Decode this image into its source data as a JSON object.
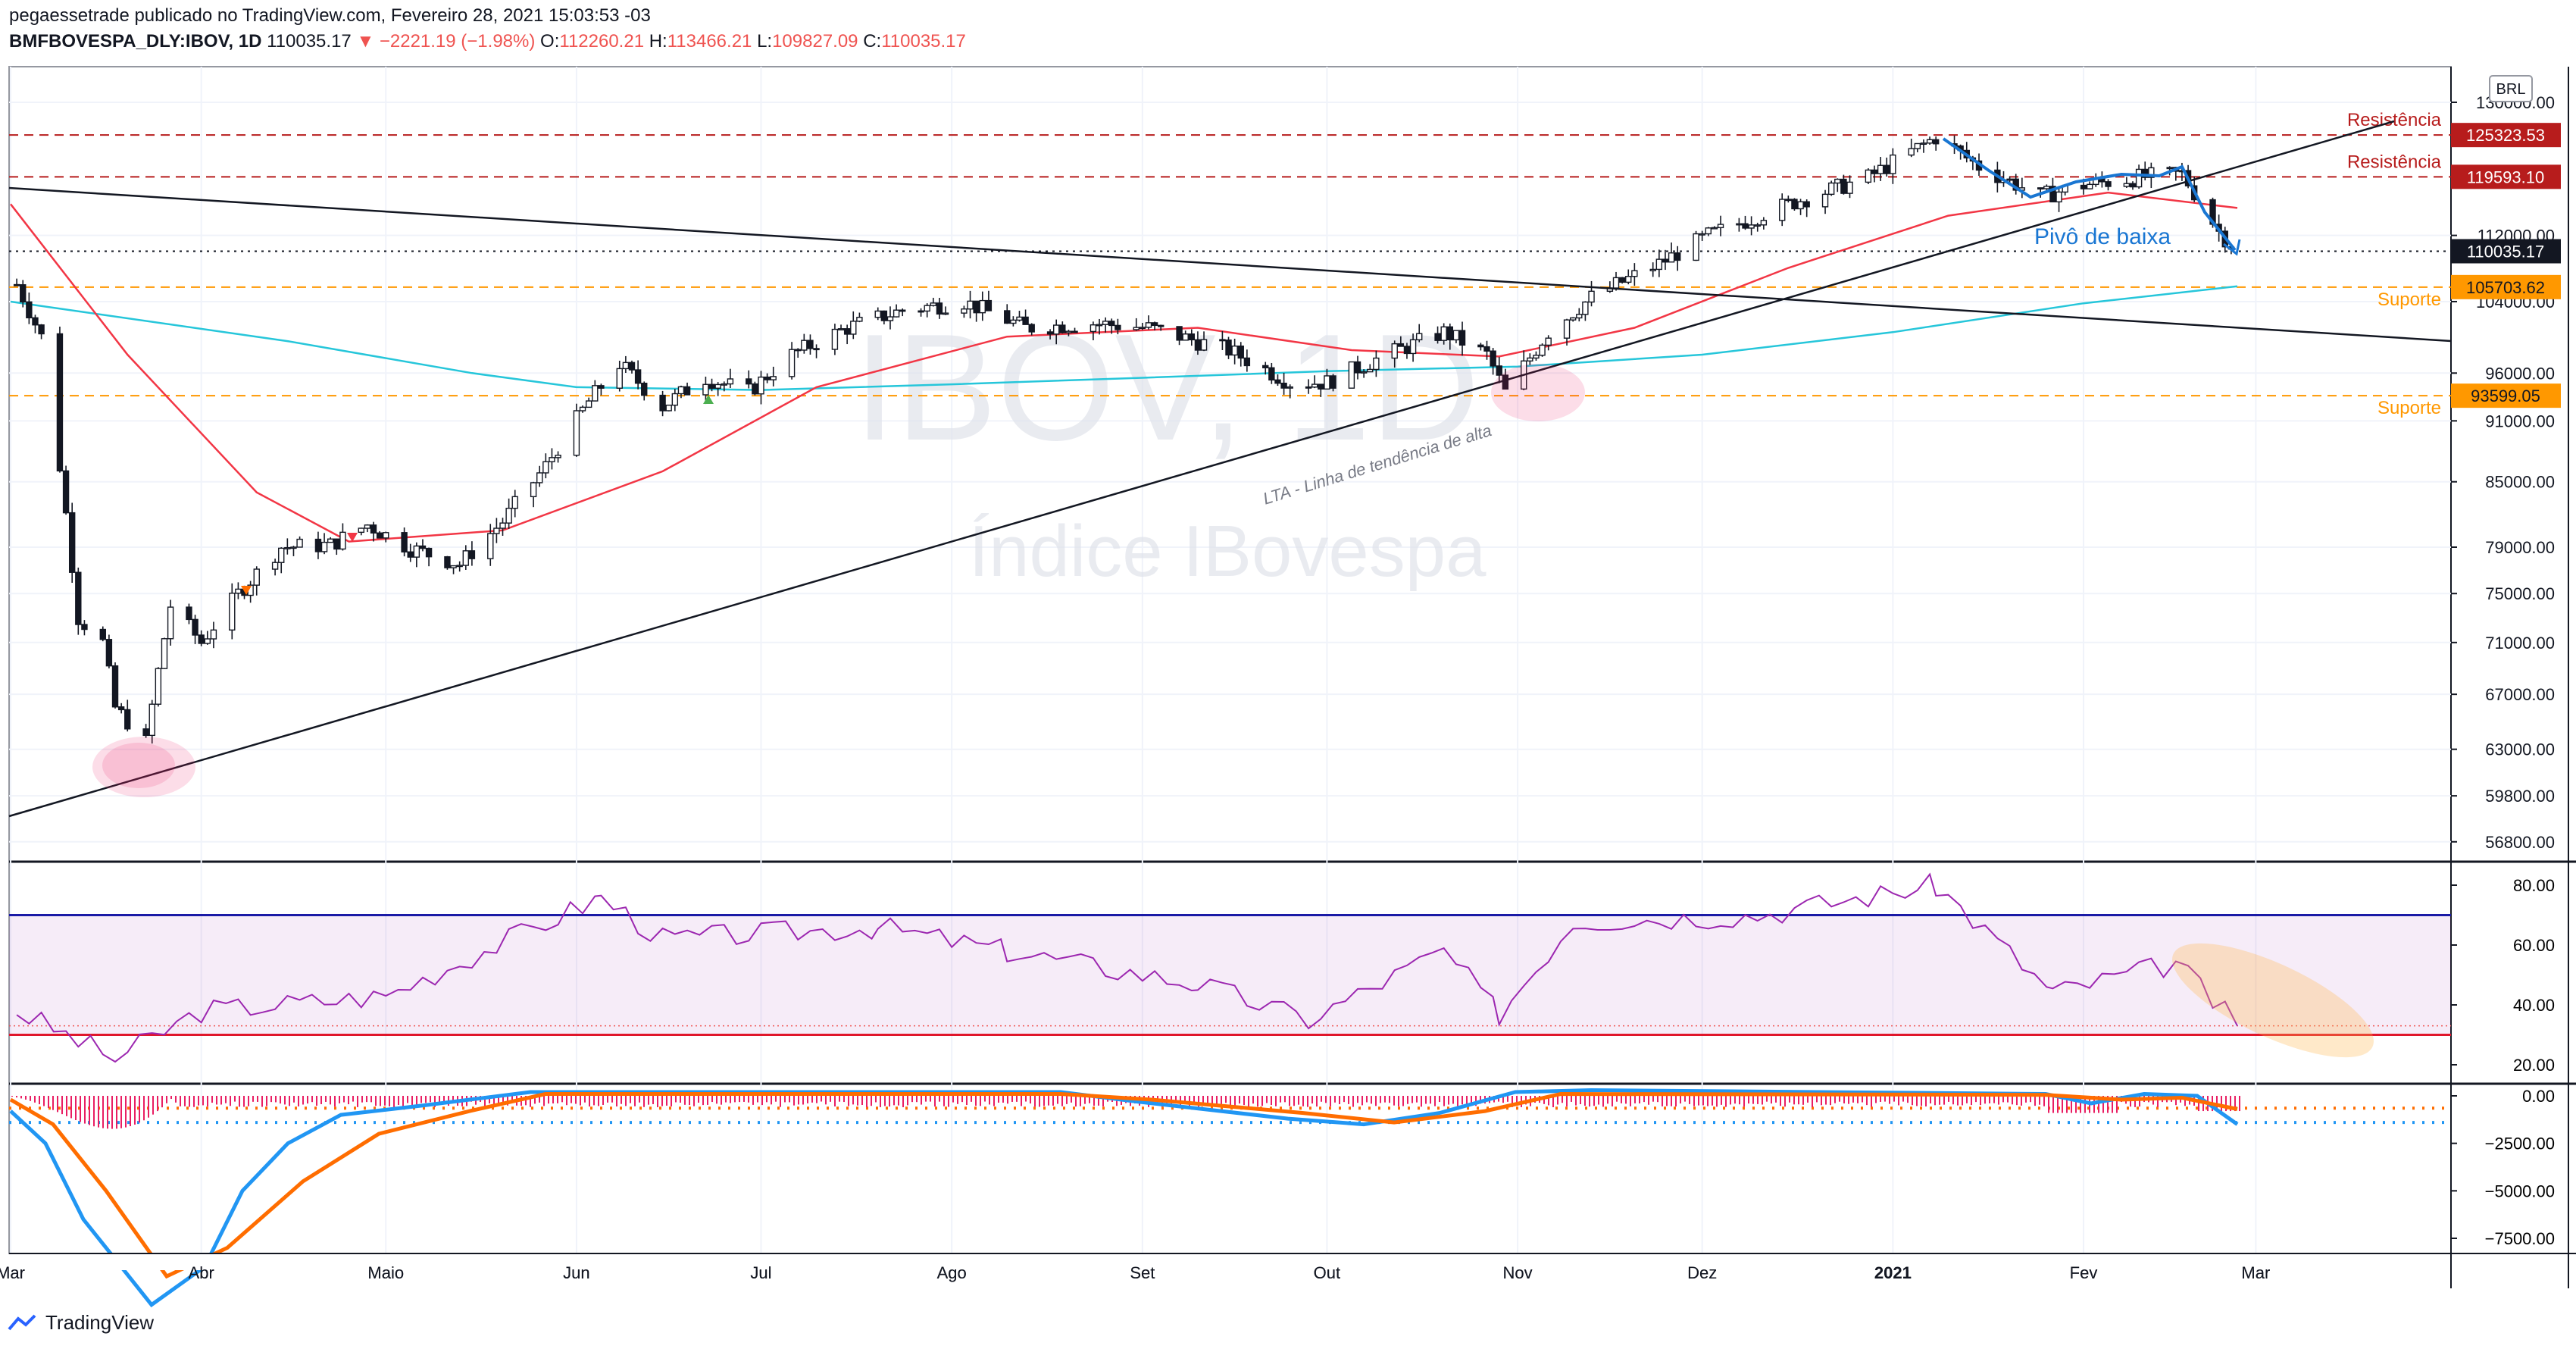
{
  "header": {
    "line1": "pegaessetrade publicado no TradingView.com, Fevereiro 28, 2021 15:03:53 -03",
    "symbol": "BMFBOVESPA_DLY:IBOV, 1D",
    "last": "110035.17",
    "change": "▼ −2221.19 (−1.98%)",
    "o_label": "O:",
    "o": "112260.21",
    "h_label": "H:",
    "h": "113466.21",
    "l_label": "L:",
    "l": "109827.09",
    "c_label": "C:",
    "c": "110035.17"
  },
  "watermark": {
    "symbol": "IBOV, 1D",
    "name": "Índice IBovespa"
  },
  "currency": "BRL",
  "footer": {
    "brand": "TradingView"
  },
  "colors": {
    "up": "#131722",
    "down": "#131722",
    "sma_short": "#f23645",
    "sma_long": "#26c6da",
    "resistance": "#b71c1c",
    "support": "#ff9800",
    "rsi": "#9c27b0",
    "macd": "#2196f3",
    "signal": "#ff6d00",
    "hist": "#e91e63",
    "pivot": "#1976d2"
  },
  "chart_data": [
    {
      "type": "line",
      "title": "BMFBOVESPA_DLY:IBOV, 1D",
      "x_ticks": [
        "Mar",
        "Abr",
        "Maio",
        "Jun",
        "Jul",
        "Ago",
        "Set",
        "Out",
        "Nov",
        "Dez",
        "2021",
        "Fev",
        "Mar"
      ],
      "y_ticks": [
        "130000.00",
        "112000.00",
        "104000.00",
        "96000.00",
        "91000.00",
        "85000.00",
        "79000.00",
        "75000.00",
        "71000.00",
        "67000.00",
        "63000.00",
        "59800.00",
        "56800.00"
      ],
      "ylim": [
        56800,
        131000
      ],
      "price_series_approx": [
        [
          "2020-03-02",
          106000
        ],
        [
          "2020-03-06",
          100000
        ],
        [
          "2020-03-12",
          73000
        ],
        [
          "2020-03-16",
          71000
        ],
        [
          "2020-03-18",
          66000
        ],
        [
          "2020-03-23",
          63500
        ],
        [
          "2020-03-27",
          74000
        ],
        [
          "2020-04-01",
          71000
        ],
        [
          "2020-04-07",
          75000
        ],
        [
          "2020-04-14",
          79000
        ],
        [
          "2020-04-22",
          79200
        ],
        [
          "2020-04-28",
          81000
        ],
        [
          "2020-05-05",
          78900
        ],
        [
          "2020-05-13",
          77500
        ],
        [
          "2020-05-20",
          81300
        ],
        [
          "2020-05-27",
          86500
        ],
        [
          "2020-06-03",
          93000
        ],
        [
          "2020-06-08",
          97000
        ],
        [
          "2020-06-15",
          92500
        ],
        [
          "2020-06-22",
          95500
        ],
        [
          "2020-06-29",
          94000
        ],
        [
          "2020-07-06",
          98000
        ],
        [
          "2020-07-15",
          101000
        ],
        [
          "2020-07-24",
          103000
        ],
        [
          "2020-08-03",
          104000
        ],
        [
          "2020-08-13",
          101000
        ],
        [
          "2020-08-24",
          101500
        ],
        [
          "2020-09-02",
          101000
        ],
        [
          "2020-09-15",
          98500
        ],
        [
          "2020-09-25",
          95000
        ],
        [
          "2020-10-01",
          95000
        ],
        [
          "2020-10-09",
          97500
        ],
        [
          "2020-10-20",
          100500
        ],
        [
          "2020-10-27",
          98000
        ],
        [
          "2020-10-30",
          93950
        ],
        [
          "2020-11-06",
          100500
        ],
        [
          "2020-11-13",
          104500
        ],
        [
          "2020-11-24",
          108500
        ],
        [
          "2020-12-02",
          112000
        ],
        [
          "2020-12-15",
          116000
        ],
        [
          "2020-12-28",
          119500
        ],
        [
          "2021-01-08",
          125000
        ],
        [
          "2021-01-15",
          121000
        ],
        [
          "2021-01-25",
          117000
        ],
        [
          "2021-02-01",
          118500
        ],
        [
          "2021-02-10",
          119500
        ],
        [
          "2021-02-17",
          120000
        ],
        [
          "2021-02-23",
          112500
        ],
        [
          "2021-02-26",
          110035
        ]
      ],
      "lines": [
        {
          "label": "Resistência",
          "value": 125323.53,
          "style": "dashed"
        },
        {
          "label": "Resistência",
          "value": 119593.1,
          "style": "dashed"
        },
        {
          "label": "Suporte",
          "value": 105703.62,
          "style": "dashed"
        },
        {
          "label": "Suporte",
          "value": 93599.05,
          "style": "dashed"
        },
        {
          "label": "",
          "value": 110035.17,
          "style": "dotted"
        }
      ],
      "annotations": [
        "LTA - Linha de tendência de alta",
        "Pivô de baixa"
      ],
      "markers_color_legend": [
        "▲",
        "▼"
      ]
    },
    {
      "type": "line",
      "title": "",
      "y_ticks": [
        "80.00",
        "60.00",
        "40.00",
        "20.00"
      ],
      "ylim": [
        15,
        83
      ],
      "bands": [
        70,
        30
      ],
      "rsi_approx": [
        [
          "2020-03-02",
          38
        ],
        [
          "2020-03-18",
          22
        ],
        [
          "2020-04-01",
          38
        ],
        [
          "2020-05-01",
          43
        ],
        [
          "2020-06-05",
          76
        ],
        [
          "2020-06-15",
          62
        ],
        [
          "2020-07-20",
          66
        ],
        [
          "2020-08-10",
          58
        ],
        [
          "2020-09-10",
          47
        ],
        [
          "2020-09-28",
          35
        ],
        [
          "2020-10-20",
          58
        ],
        [
          "2020-10-29",
          37
        ],
        [
          "2020-11-10",
          68
        ],
        [
          "2020-12-10",
          70
        ],
        [
          "2021-01-08",
          80
        ],
        [
          "2021-01-27",
          44
        ],
        [
          "2021-02-16",
          54
        ],
        [
          "2021-02-26",
          33
        ]
      ]
    },
    {
      "type": "line",
      "title": "",
      "y_ticks": [
        "0.00",
        "−2500.00",
        "−5000.00",
        "−7500.00"
      ],
      "ylim": [
        -8800,
        500
      ],
      "series": [
        {
          "values_note": "MACD"
        },
        {
          "values_note": "Signal"
        }
      ],
      "levels": [
        -650,
        -1400
      ]
    }
  ]
}
